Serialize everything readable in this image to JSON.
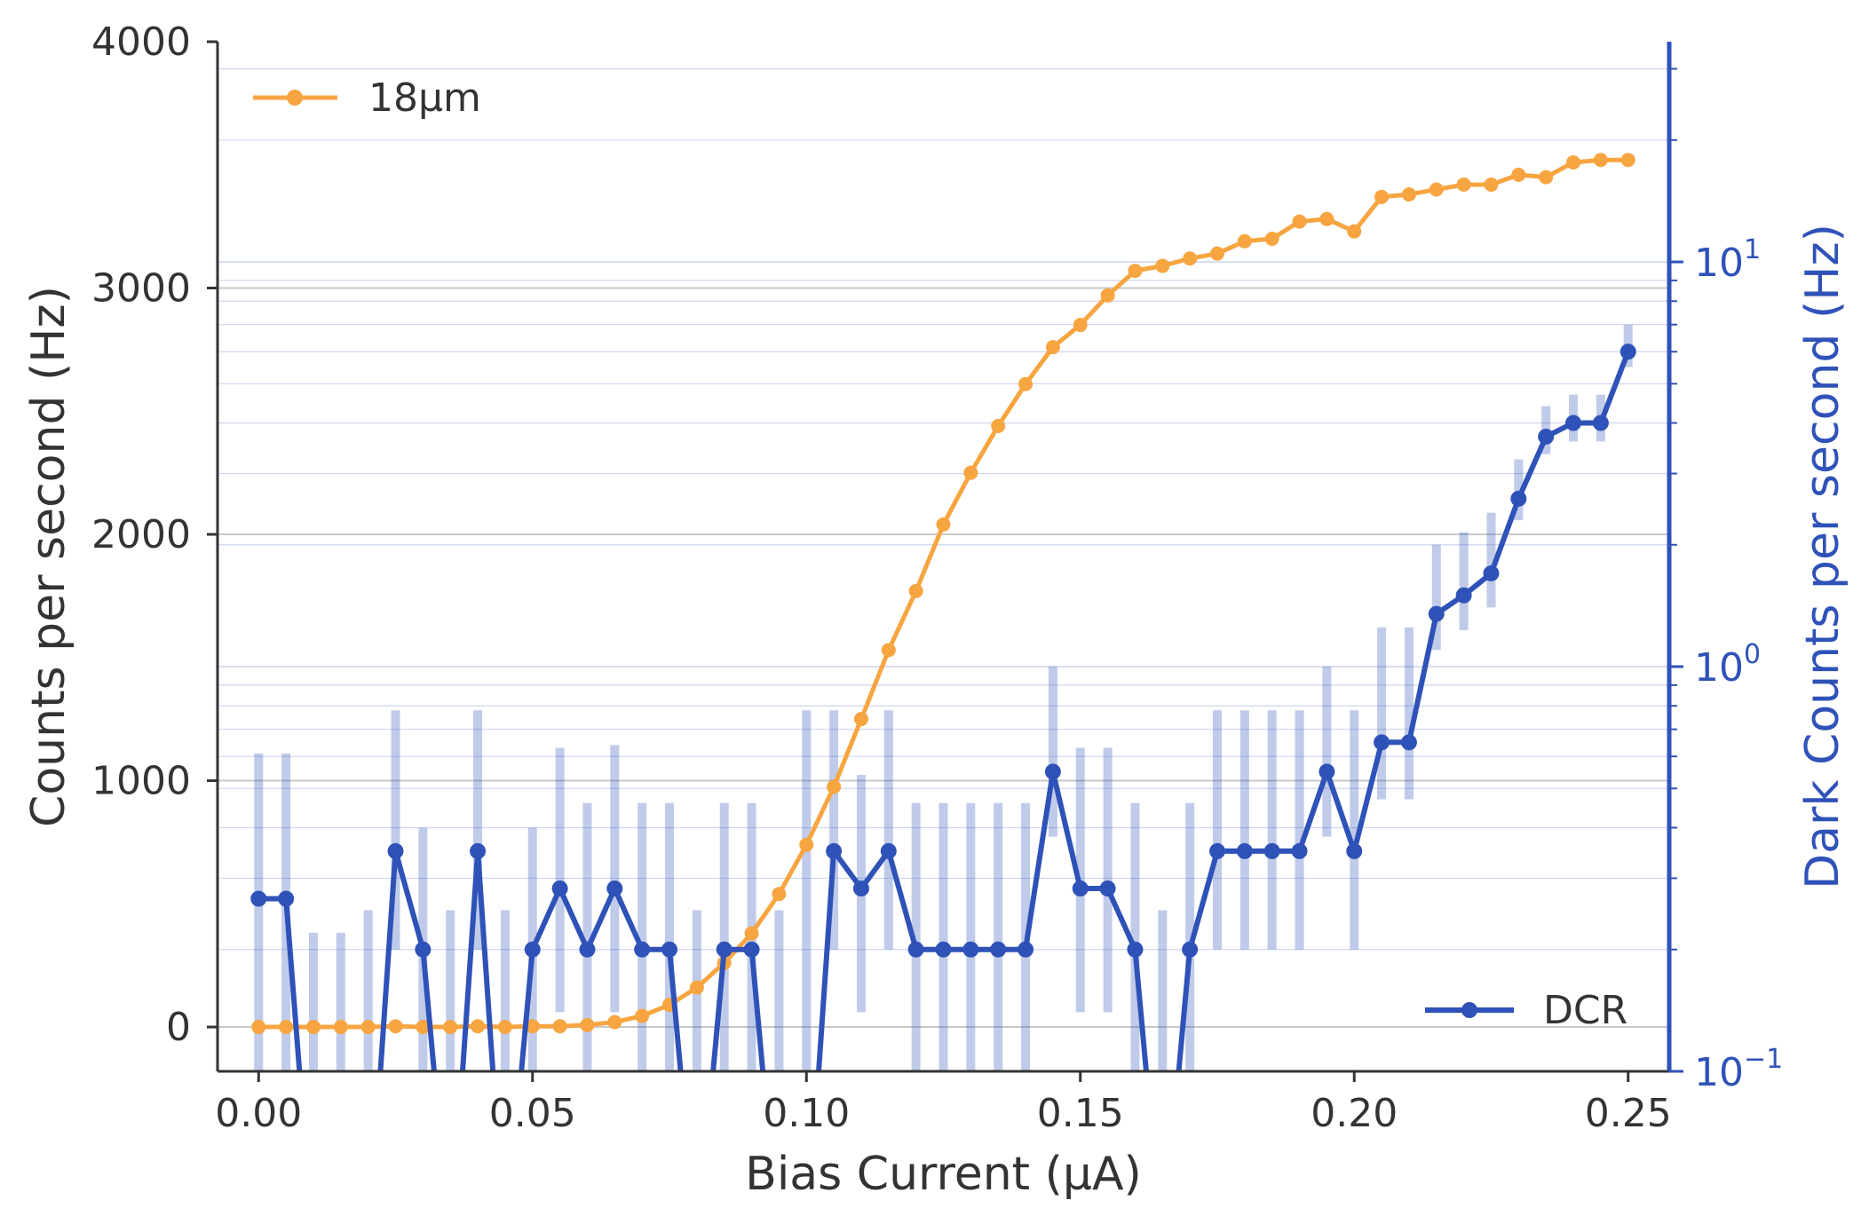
{
  "chart_data": {
    "type": "line",
    "xlabel": "Bias Current (μA)",
    "ylabel": "Counts per second (Hz)",
    "y2label": "Dark Counts per second (Hz)",
    "xlim": [
      -0.0075,
      0.2575
    ],
    "ylim": [
      -180,
      4000
    ],
    "y2lim": [
      0.1,
      35
    ],
    "y2scale": "log",
    "x_ticks": [
      0.0,
      0.05,
      0.1,
      0.15,
      0.2,
      0.25
    ],
    "x_tick_labels": [
      "0.00",
      "0.05",
      "0.10",
      "0.15",
      "0.20",
      "0.25"
    ],
    "y_ticks": [
      0,
      1000,
      2000,
      3000,
      4000
    ],
    "y_tick_labels": [
      "0",
      "1000",
      "2000",
      "3000",
      "4000"
    ],
    "y2_ticks": [
      0.1,
      1,
      10
    ],
    "y2_tick_labels": [
      {
        "base": "10",
        "exp": "−1"
      },
      {
        "base": "10",
        "exp": "0"
      },
      {
        "base": "10",
        "exp": "1"
      }
    ],
    "grid": true,
    "colors": {
      "series1": "#f7a541",
      "series2": "#2f52b8",
      "errorbar": "#2f52b8",
      "axis2": "#2f52b8",
      "axis": "#333333"
    },
    "series": [
      {
        "name": "18μm",
        "axis": "left",
        "legend_position": "upper-left",
        "x": [
          0,
          0.005,
          0.01,
          0.015,
          0.02,
          0.025,
          0.03,
          0.035,
          0.04,
          0.045,
          0.05,
          0.055,
          0.06,
          0.065,
          0.07,
          0.075,
          0.08,
          0.085,
          0.09,
          0.095,
          0.1,
          0.105,
          0.11,
          0.115,
          0.12,
          0.125,
          0.13,
          0.135,
          0.14,
          0.145,
          0.15,
          0.155,
          0.16,
          0.165,
          0.17,
          0.175,
          0.18,
          0.185,
          0.19,
          0.195,
          0.2,
          0.205,
          0.21,
          0.215,
          0.22,
          0.225,
          0.23,
          0.235,
          0.24,
          0.245,
          0.25
        ],
        "values": [
          0,
          0,
          0,
          0,
          0,
          3,
          0,
          0,
          3,
          0,
          3,
          3,
          8,
          20,
          45,
          90,
          160,
          260,
          380,
          540,
          740,
          975,
          1250,
          1530,
          1770,
          2040,
          2250,
          2440,
          2610,
          2760,
          2850,
          2970,
          3070,
          3090,
          3120,
          3140,
          3190,
          3200,
          3270,
          3280,
          3230,
          3370,
          3380,
          3400,
          3420,
          3420,
          3460,
          3450,
          3510,
          3520,
          3520
        ]
      },
      {
        "name": "DCR",
        "axis": "right",
        "legend_position": "lower-right",
        "x": [
          0,
          0.005,
          0.01,
          0.015,
          0.02,
          0.025,
          0.03,
          0.035,
          0.04,
          0.045,
          0.05,
          0.055,
          0.06,
          0.065,
          0.07,
          0.075,
          0.08,
          0.085,
          0.09,
          0.095,
          0.1,
          0.105,
          0.11,
          0.115,
          0.12,
          0.125,
          0.13,
          0.135,
          0.14,
          0.145,
          0.15,
          0.155,
          0.16,
          0.165,
          0.17,
          0.175,
          0.18,
          0.185,
          0.19,
          0.195,
          0.2,
          0.205,
          0.21,
          0.215,
          0.22,
          0.225,
          0.23,
          0.235,
          0.24,
          0.245,
          0.25
        ],
        "values": [
          0.267,
          0.267,
          0,
          0,
          0,
          0.35,
          0.2,
          0,
          0.35,
          0,
          0.2,
          0.283,
          0.2,
          0.283,
          0.2,
          0.2,
          0,
          0.2,
          0.2,
          0,
          0,
          0.35,
          0.283,
          0.35,
          0.2,
          0.2,
          0.2,
          0.2,
          0.2,
          0.55,
          0.283,
          0.283,
          0.2,
          0,
          0.2,
          0.35,
          0.35,
          0.35,
          0.35,
          0.55,
          0.35,
          0.65,
          0.65,
          1.35,
          1.5,
          1.7,
          2.6,
          3.7,
          4.0,
          4.0,
          6.0
        ],
        "error_low": [
          0.1,
          0.1,
          0.08,
          0.08,
          0.08,
          0.2,
          0.1,
          0.08,
          0.2,
          0.08,
          0.1,
          0.14,
          0.1,
          0.14,
          0.1,
          0.1,
          0.08,
          0.1,
          0.1,
          0.08,
          0.08,
          0.2,
          0.14,
          0.2,
          0.1,
          0.1,
          0.1,
          0.1,
          0.1,
          0.38,
          0.14,
          0.14,
          0.1,
          0.08,
          0.1,
          0.2,
          0.2,
          0.2,
          0.2,
          0.38,
          0.2,
          0.47,
          0.47,
          1.1,
          1.23,
          1.4,
          2.3,
          3.35,
          3.6,
          3.6,
          5.5
        ],
        "error_high": [
          0.61,
          0.61,
          0.22,
          0.22,
          0.25,
          0.78,
          0.4,
          0.25,
          0.78,
          0.25,
          0.4,
          0.63,
          0.46,
          0.64,
          0.46,
          0.46,
          0.25,
          0.46,
          0.46,
          0.25,
          0.78,
          0.78,
          0.54,
          0.78,
          0.46,
          0.46,
          0.46,
          0.46,
          0.46,
          1.0,
          0.63,
          0.63,
          0.46,
          0.25,
          0.46,
          0.78,
          0.78,
          0.78,
          0.78,
          1.0,
          0.78,
          1.25,
          1.25,
          2.0,
          2.15,
          2.4,
          3.25,
          4.4,
          4.7,
          4.7,
          7.0
        ]
      }
    ]
  }
}
